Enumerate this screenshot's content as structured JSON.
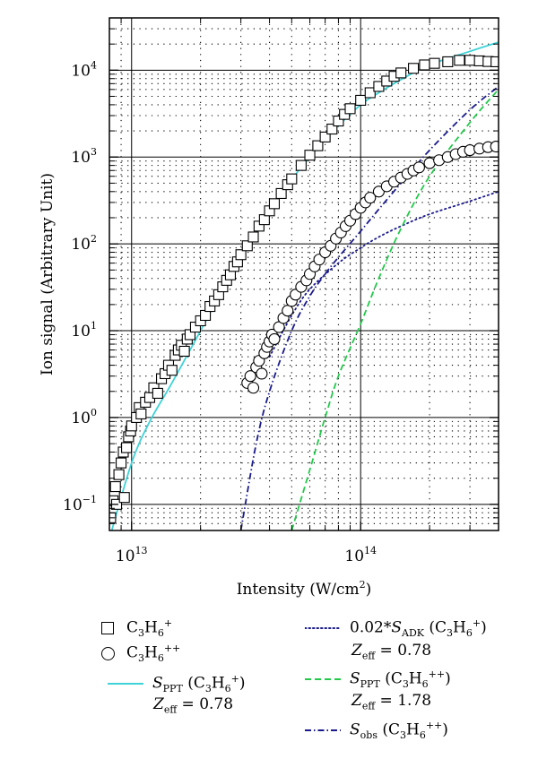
{
  "chart_data": {
    "type": "scatter",
    "xlabel": "Intensity (W/cm",
    "xlabel_sup": "2",
    "xlabel_close": ")",
    "ylabel": "Ion signal (Arbitrary Unit)",
    "x_scale": "log",
    "y_scale": "log",
    "xlim": [
      8000000000000.0,
      400000000000000.0
    ],
    "ylim": [
      0.05,
      40000
    ],
    "grid": true,
    "x_ticks": [
      {
        "value": 10000000000000.0,
        "base": "10",
        "exp": "13"
      },
      {
        "value": 100000000000000.0,
        "base": "10",
        "exp": "14"
      }
    ],
    "y_ticks": [
      {
        "value": 0.1,
        "base": "10",
        "exp": "−1"
      },
      {
        "value": 1,
        "base": "10",
        "exp": "0"
      },
      {
        "value": 10,
        "base": "10",
        "exp": "1"
      },
      {
        "value": 100,
        "base": "10",
        "exp": "2"
      },
      {
        "value": 1000,
        "base": "10",
        "exp": "3"
      },
      {
        "value": 10000,
        "base": "10",
        "exp": "4"
      }
    ],
    "series": [
      {
        "name": "C3H6+",
        "kind": "markers",
        "marker": "square",
        "color": "#000000",
        "points": [
          [
            8100000000000.0,
            0.07
          ],
          [
            8300000000000.0,
            0.11
          ],
          [
            8500000000000.0,
            0.16
          ],
          [
            8600000000000.0,
            0.1
          ],
          [
            8800000000000.0,
            0.22
          ],
          [
            9000000000000.0,
            0.3
          ],
          [
            9200000000000.0,
            0.4
          ],
          [
            9300000000000.0,
            0.12
          ],
          [
            9500000000000.0,
            0.45
          ],
          [
            9700000000000.0,
            0.6
          ],
          [
            9900000000000.0,
            0.7
          ],
          [
            10000000000000.0,
            0.8
          ],
          [
            10500000000000.0,
            1.0
          ],
          [
            10800000000000.0,
            1.3
          ],
          [
            11000000000000.0,
            1.1
          ],
          [
            11500000000000.0,
            1.5
          ],
          [
            12000000000000.0,
            1.7
          ],
          [
            12500000000000.0,
            2.2
          ],
          [
            13000000000000.0,
            1.9
          ],
          [
            13500000000000.0,
            2.8
          ],
          [
            14000000000000.0,
            3.2
          ],
          [
            14500000000000.0,
            4.0
          ],
          [
            15000000000000.0,
            3.5
          ],
          [
            15500000000000.0,
            5.2
          ],
          [
            16000000000000.0,
            6.0
          ],
          [
            16500000000000.0,
            6.8
          ],
          [
            17000000000000.0,
            5.8
          ],
          [
            17500000000000.0,
            8.0
          ],
          [
            18000000000000.0,
            9.0
          ],
          [
            19000000000000.0,
            11
          ],
          [
            20000000000000.0,
            13
          ],
          [
            21000000000000.0,
            15
          ],
          [
            22000000000000.0,
            19
          ],
          [
            23000000000000.0,
            22
          ],
          [
            24000000000000.0,
            26
          ],
          [
            25000000000000.0,
            32
          ],
          [
            26000000000000.0,
            38
          ],
          [
            27000000000000.0,
            44
          ],
          [
            28000000000000.0,
            55
          ],
          [
            29000000000000.0,
            62
          ],
          [
            30000000000000.0,
            75
          ],
          [
            32000000000000.0,
            95
          ],
          [
            34000000000000.0,
            120
          ],
          [
            36000000000000.0,
            160
          ],
          [
            38000000000000.0,
            190
          ],
          [
            40000000000000.0,
            240
          ],
          [
            42000000000000.0,
            290
          ],
          [
            45000000000000.0,
            380
          ],
          [
            48000000000000.0,
            480
          ],
          [
            50000000000000.0,
            560
          ],
          [
            55000000000000.0,
            800
          ],
          [
            60000000000000.0,
            1050
          ],
          [
            65000000000000.0,
            1350
          ],
          [
            70000000000000.0,
            1700
          ],
          [
            75000000000000.0,
            2100
          ],
          [
            80000000000000.0,
            2600
          ],
          [
            85000000000000.0,
            3100
          ],
          [
            90000000000000.0,
            3600
          ],
          [
            100000000000000.0,
            4500
          ],
          [
            110000000000000.0,
            5500
          ],
          [
            120000000000000.0,
            6500
          ],
          [
            130000000000000.0,
            7500
          ],
          [
            140000000000000.0,
            8500
          ],
          [
            150000000000000.0,
            9300
          ],
          [
            170000000000000.0,
            10500
          ],
          [
            190000000000000.0,
            11500
          ],
          [
            210000000000000.0,
            12000
          ],
          [
            240000000000000.0,
            12500
          ],
          [
            270000000000000.0,
            13000
          ],
          [
            300000000000000.0,
            13000
          ],
          [
            330000000000000.0,
            12800
          ],
          [
            360000000000000.0,
            12600
          ],
          [
            390000000000000.0,
            12500
          ]
        ]
      },
      {
        "name": "C3H6++",
        "kind": "markers",
        "marker": "circle",
        "color": "#000000",
        "points": [
          [
            32000000000000.0,
            2.5
          ],
          [
            33000000000000.0,
            3.0
          ],
          [
            34000000000000.0,
            2.2
          ],
          [
            35000000000000.0,
            3.8
          ],
          [
            36000000000000.0,
            4.5
          ],
          [
            37000000000000.0,
            3.2
          ],
          [
            38000000000000.0,
            5.5
          ],
          [
            39000000000000.0,
            6.5
          ],
          [
            40000000000000.0,
            7.5
          ],
          [
            41000000000000.0,
            9.0
          ],
          [
            42000000000000.0,
            8.0
          ],
          [
            44000000000000.0,
            11
          ],
          [
            46000000000000.0,
            14
          ],
          [
            48000000000000.0,
            17
          ],
          [
            50000000000000.0,
            22
          ],
          [
            52000000000000.0,
            26
          ],
          [
            55000000000000.0,
            32
          ],
          [
            58000000000000.0,
            38
          ],
          [
            60000000000000.0,
            45
          ],
          [
            63000000000000.0,
            55
          ],
          [
            66000000000000.0,
            66
          ],
          [
            70000000000000.0,
            80
          ],
          [
            74000000000000.0,
            95
          ],
          [
            78000000000000.0,
            115
          ],
          [
            82000000000000.0,
            135
          ],
          [
            86000000000000.0,
            160
          ],
          [
            90000000000000.0,
            185
          ],
          [
            95000000000000.0,
            220
          ],
          [
            100000000000000.0,
            260
          ],
          [
            105000000000000.0,
            300
          ],
          [
            110000000000000.0,
            340
          ],
          [
            120000000000000.0,
            400
          ],
          [
            130000000000000.0,
            460
          ],
          [
            140000000000000.0,
            520
          ],
          [
            150000000000000.0,
            580
          ],
          [
            160000000000000.0,
            640
          ],
          [
            170000000000000.0,
            700
          ],
          [
            180000000000000.0,
            760
          ],
          [
            200000000000000.0,
            850
          ],
          [
            220000000000000.0,
            920
          ],
          [
            240000000000000.0,
            1000
          ],
          [
            260000000000000.0,
            1080
          ],
          [
            280000000000000.0,
            1150
          ],
          [
            300000000000000.0,
            1200
          ],
          [
            330000000000000.0,
            1250
          ],
          [
            360000000000000.0,
            1300
          ],
          [
            390000000000000.0,
            1320
          ]
        ]
      },
      {
        "name": "S_PPT (C3H6+) Z_eff = 0.78",
        "kind": "curve",
        "style": "solid",
        "color": "#3fd3d8",
        "points": [
          [
            8000000000000.0,
            0.04
          ],
          [
            10000000000000.0,
            0.3
          ],
          [
            12000000000000.0,
            0.9
          ],
          [
            15000000000000.0,
            2.5
          ],
          [
            20000000000000.0,
            10
          ],
          [
            25000000000000.0,
            30
          ],
          [
            30000000000000.0,
            70
          ],
          [
            40000000000000.0,
            230
          ],
          [
            50000000000000.0,
            550
          ],
          [
            60000000000000.0,
            1000
          ],
          [
            70000000000000.0,
            1600
          ],
          [
            80000000000000.0,
            2300
          ],
          [
            100000000000000.0,
            4000
          ],
          [
            120000000000000.0,
            5500
          ],
          [
            150000000000000.0,
            7800
          ],
          [
            200000000000000.0,
            11500
          ],
          [
            300000000000000.0,
            16500
          ],
          [
            400000000000000.0,
            21000
          ]
        ]
      },
      {
        "name": "0.02*S_ADK (C3H6+) Z_eff = 0.78",
        "kind": "curve",
        "style": "dotted",
        "color": "#1a1a8c",
        "points": [
          [
            40000000000000.0,
            5
          ],
          [
            50000000000000.0,
            15
          ],
          [
            60000000000000.0,
            30
          ],
          [
            80000000000000.0,
            60
          ],
          [
            100000000000000.0,
            90
          ],
          [
            120000000000000.0,
            120
          ],
          [
            150000000000000.0,
            160
          ],
          [
            200000000000000.0,
            220
          ],
          [
            300000000000000.0,
            310
          ],
          [
            400000000000000.0,
            400
          ]
        ]
      },
      {
        "name": "S_PPT (C3H6++) Z_eff = 1.78",
        "kind": "curve",
        "style": "dashed",
        "color": "#22c94a",
        "points": [
          [
            50000000000000.0,
            0.05
          ],
          [
            60000000000000.0,
            0.25
          ],
          [
            70000000000000.0,
            1.0
          ],
          [
            80000000000000.0,
            3.0
          ],
          [
            100000000000000.0,
            12
          ],
          [
            120000000000000.0,
            40
          ],
          [
            150000000000000.0,
            150
          ],
          [
            200000000000000.0,
            600
          ],
          [
            300000000000000.0,
            2500
          ],
          [
            400000000000000.0,
            6000
          ]
        ]
      },
      {
        "name": "S_obs (C3H6++)",
        "kind": "curve",
        "style": "dashdot",
        "color": "#1a1a8c",
        "points": [
          [
            30000000000000.0,
            0.05
          ],
          [
            35000000000000.0,
            0.5
          ],
          [
            40000000000000.0,
            2.0
          ],
          [
            50000000000000.0,
            10
          ],
          [
            60000000000000.0,
            25
          ],
          [
            70000000000000.0,
            45
          ],
          [
            80000000000000.0,
            70
          ],
          [
            100000000000000.0,
            140
          ],
          [
            120000000000000.0,
            250
          ],
          [
            150000000000000.0,
            500
          ],
          [
            200000000000000.0,
            1200
          ],
          [
            300000000000000.0,
            3500
          ],
          [
            400000000000000.0,
            6500
          ]
        ]
      }
    ]
  },
  "legend": {
    "sq_main": "C",
    "sq_s1": "3",
    "sq_h": "H",
    "sq_s2": "6",
    "sq_sup": "+",
    "ci_main": "C",
    "ci_s1": "3",
    "ci_h": "H",
    "ci_s2": "6",
    "ci_sup": "++",
    "ppt1_s": "S",
    "ppt1_sub": "PPT",
    "ppt1_open": " (C",
    "ppt1_s1": "3",
    "ppt1_h": "H",
    "ppt1_s2": "6",
    "ppt1_sup": "+",
    "ppt1_close": ")",
    "ppt1_z": "Z",
    "ppt1_zsub": "eff",
    "ppt1_zval": " = 0.78",
    "adk_pre": "0.02*",
    "adk_s": "S",
    "adk_sub": "ADK",
    "adk_open": " (C",
    "adk_s1": "3",
    "adk_h": "H",
    "adk_s2": "6",
    "adk_sup": "+",
    "adk_close": ")",
    "adk_z": "Z",
    "adk_zsub": "eff",
    "adk_zval": " = 0.78",
    "ppt2_s": "S",
    "ppt2_sub": "PPT",
    "ppt2_open": " (C",
    "ppt2_s1": "3",
    "ppt2_h": "H",
    "ppt2_s2": "6",
    "ppt2_sup": "++",
    "ppt2_close": ")",
    "ppt2_z": "Z",
    "ppt2_zsub": "eff",
    "ppt2_zval": " = 1.78",
    "obs_s": "S",
    "obs_sub": "obs",
    "obs_open": " (C",
    "obs_s1": "3",
    "obs_h": "H",
    "obs_s2": "6",
    "obs_sup": "++",
    "obs_close": ")"
  }
}
